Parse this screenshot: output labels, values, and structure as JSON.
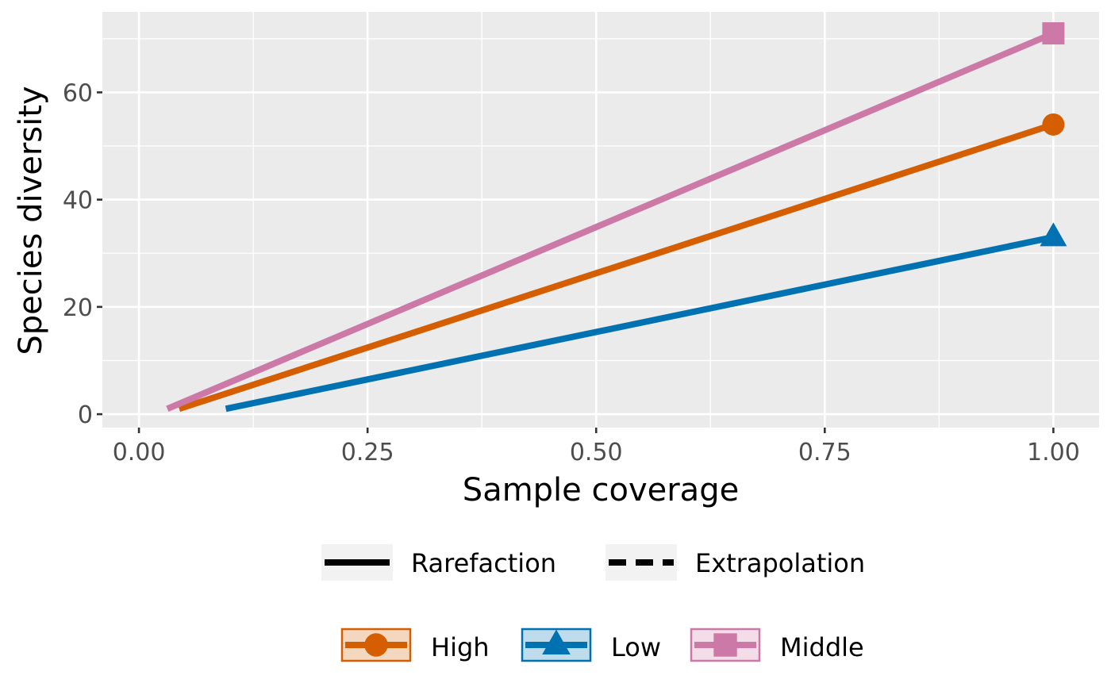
{
  "chart_data": {
    "type": "line",
    "xlabel": "Sample coverage",
    "ylabel": "Species diversity",
    "xlim": [
      -0.04,
      1.05
    ],
    "ylim": [
      -2.5,
      75
    ],
    "x_ticks": [
      0,
      0.25,
      0.5,
      0.75,
      1
    ],
    "x_tick_labels": [
      "0.00",
      "0.25",
      "0.50",
      "0.75",
      "1.00"
    ],
    "y_ticks": [
      0,
      20,
      40,
      60
    ],
    "y_tick_labels": [
      "0",
      "20",
      "40",
      "60"
    ],
    "grid": true,
    "legend_position": "bottom",
    "line_types": [
      {
        "name": "Rarefaction",
        "style": "solid"
      },
      {
        "name": "Extrapolation",
        "style": "dashed"
      }
    ],
    "series": [
      {
        "name": "High",
        "color": "#D55E00",
        "marker": "circle",
        "x": [
          0.044,
          1.0
        ],
        "y": [
          1,
          54
        ],
        "style": "solid"
      },
      {
        "name": "Low",
        "color": "#0072B2",
        "marker": "triangle",
        "x": [
          0.095,
          1.0
        ],
        "y": [
          1,
          33
        ],
        "style": "solid"
      },
      {
        "name": "Middle",
        "color": "#CC79A7",
        "marker": "square",
        "x": [
          0.031,
          1.0
        ],
        "y": [
          1,
          71
        ],
        "style": "solid"
      }
    ]
  }
}
